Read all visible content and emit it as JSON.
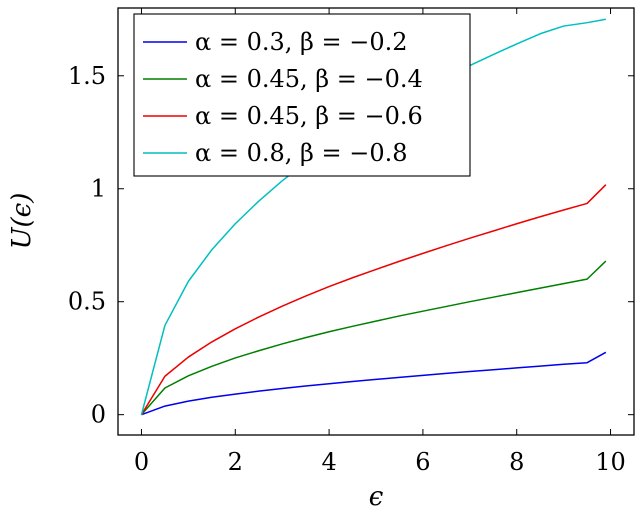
{
  "chart_data": {
    "type": "line",
    "xlabel": "ϵ",
    "ylabel": "U(ϵ)",
    "xlim": [
      -0.5,
      10.5
    ],
    "ylim": [
      -0.09,
      1.8
    ],
    "x_ticks": [
      0,
      2,
      4,
      6,
      8,
      10
    ],
    "x_tick_labels": [
      "0",
      "2",
      "4",
      "6",
      "8",
      "10"
    ],
    "y_ticks": [
      0,
      0.5,
      1,
      1.5
    ],
    "y_tick_labels": [
      "0",
      "0.5",
      "1",
      "1.5"
    ],
    "grid": false,
    "legend_position": "top-left",
    "x": [
      0,
      0.5,
      1,
      1.5,
      2,
      2.5,
      3,
      3.5,
      4,
      4.5,
      5,
      5.5,
      6,
      6.5,
      7,
      7.5,
      8,
      8.5,
      9,
      9.5,
      9.9
    ],
    "series": [
      {
        "name": "α = 0.3, β = −0.2",
        "color": "#0000ee",
        "values": [
          0,
          0.038,
          0.06,
          0.077,
          0.091,
          0.104,
          0.116,
          0.127,
          0.137,
          0.147,
          0.156,
          0.165,
          0.174,
          0.183,
          0.191,
          0.199,
          0.207,
          0.215,
          0.223,
          0.23,
          0.276
        ]
      },
      {
        "name": "α = 0.45, β = −0.4",
        "color": "#007f00",
        "values": [
          0,
          0.118,
          0.172,
          0.214,
          0.251,
          0.283,
          0.313,
          0.341,
          0.367,
          0.391,
          0.414,
          0.437,
          0.458,
          0.479,
          0.5,
          0.52,
          0.54,
          0.56,
          0.58,
          0.6,
          0.68
        ]
      },
      {
        "name": "α = 0.45, β = −0.6",
        "color": "#ee0000",
        "values": [
          0,
          0.17,
          0.255,
          0.322,
          0.38,
          0.432,
          0.48,
          0.525,
          0.567,
          0.606,
          0.643,
          0.679,
          0.714,
          0.748,
          0.781,
          0.813,
          0.845,
          0.876,
          0.906,
          0.935,
          1.018
        ]
      },
      {
        "name": "α = 0.8, β = −0.8",
        "color": "#00bfbf",
        "values": [
          0,
          0.395,
          0.59,
          0.73,
          0.845,
          0.945,
          1.035,
          1.115,
          1.189,
          1.258,
          1.322,
          1.383,
          1.44,
          1.494,
          1.545,
          1.594,
          1.641,
          1.686,
          1.72,
          1.735,
          1.75
        ]
      }
    ]
  }
}
